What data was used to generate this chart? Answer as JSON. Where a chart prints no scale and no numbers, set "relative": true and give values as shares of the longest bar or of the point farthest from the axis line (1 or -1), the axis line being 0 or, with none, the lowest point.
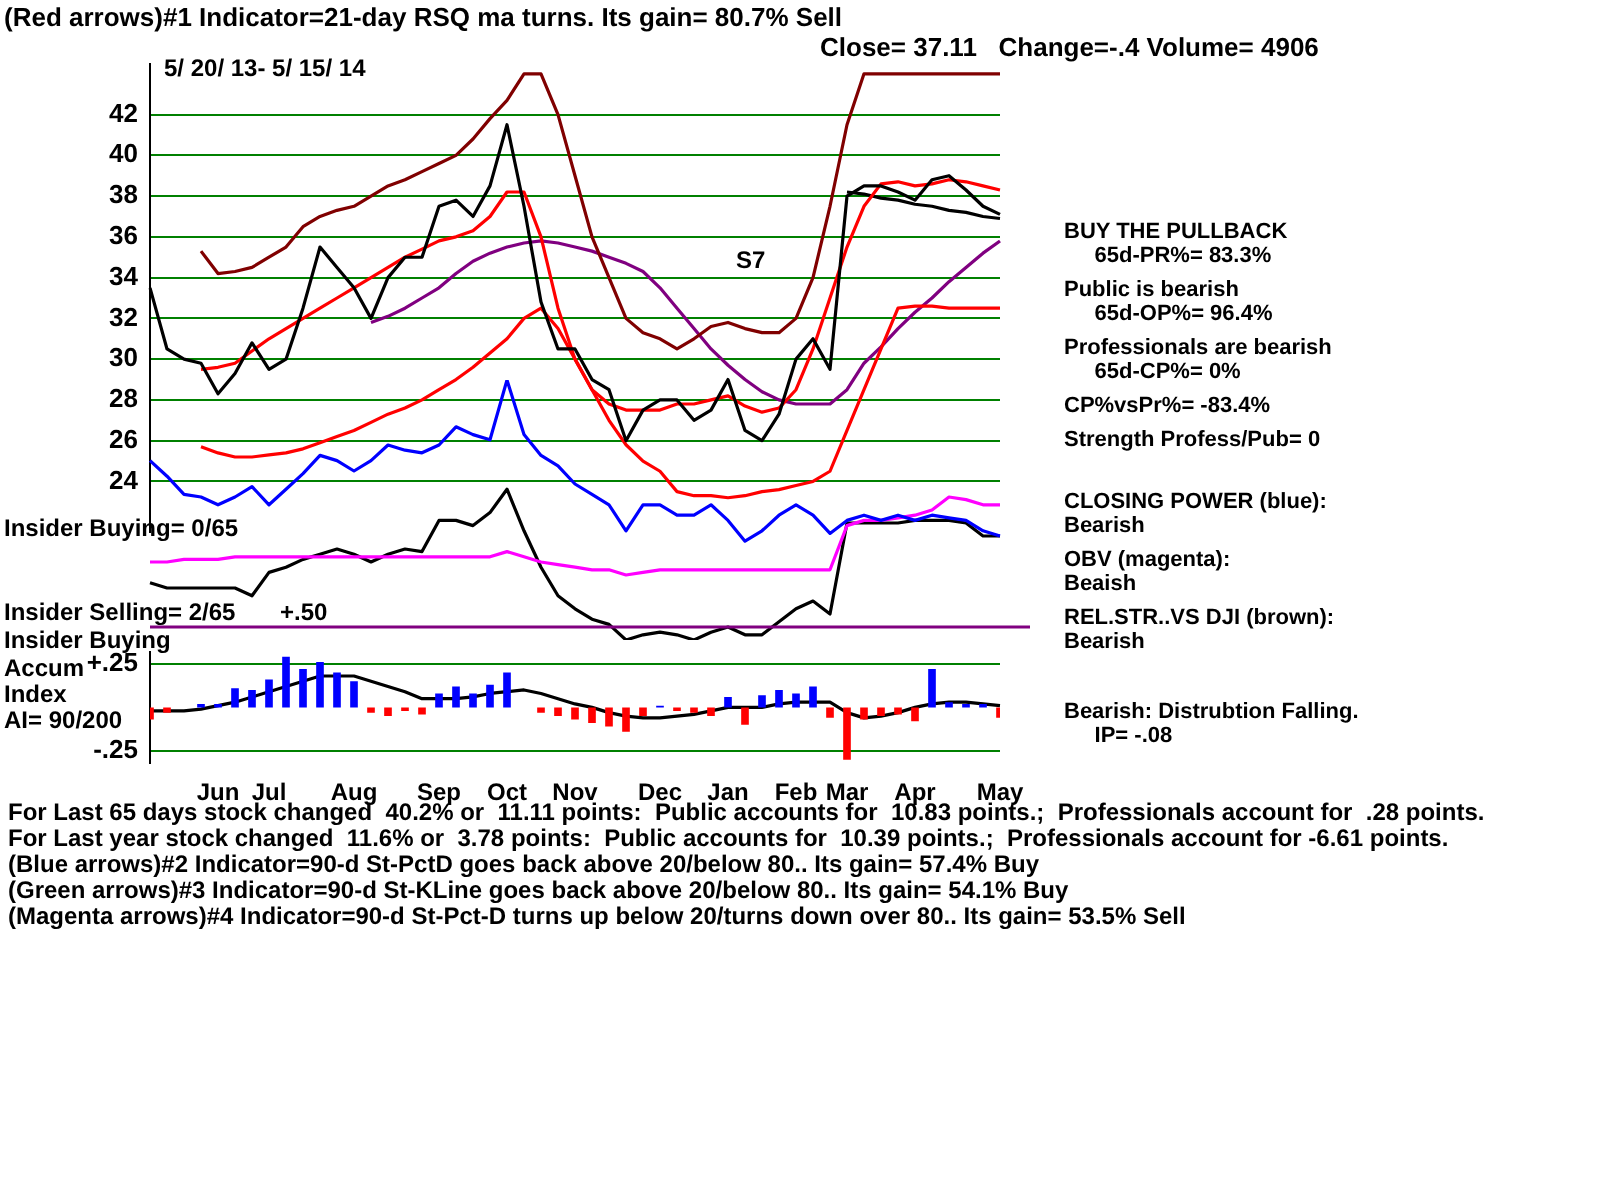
{
  "chart_data": [
    {
      "type": "line",
      "title": "(Red arrows)#1 Indicator=21-day RSQ ma turns. Its gain= 80.7% Sell",
      "subtitle": "Close= 37.11   Change=-.4 Volume= 4906",
      "categories": [
        null,
        null,
        null,
        null,
        null,
        null,
        null,
        null,
        null,
        null,
        null,
        null,
        null,
        null,
        null,
        null,
        null,
        null,
        null,
        null,
        null,
        null,
        null,
        null,
        null,
        null,
        null,
        null,
        null,
        null,
        null,
        null,
        null,
        null,
        null,
        null,
        null,
        null,
        null,
        null,
        null,
        null,
        null,
        null,
        null,
        null,
        null,
        null,
        null,
        null,
        null
      ],
      "series": [
        {
          "color": "#000000",
          "values": [
            33.5,
            30.5,
            30,
            29.8,
            28.3,
            29.3,
            30.8,
            29.5,
            30,
            32.5,
            35.5,
            34.5,
            33.5,
            32,
            34,
            35,
            35,
            37.5,
            37.8,
            37,
            38.5,
            41.5,
            37.5,
            32.8,
            30.5,
            30.5,
            29,
            28.5,
            26,
            27.5,
            28,
            28,
            27,
            27.5,
            29,
            26.5,
            26,
            27.3,
            30,
            31,
            29.5,
            38,
            38.5,
            38.5,
            38.2,
            37.8,
            38.8,
            39,
            38.3,
            37.5,
            37.1
          ]
        },
        {
          "color": "#800000",
          "values": [
            null,
            null,
            null,
            35.3,
            34.2,
            34.3,
            34.5,
            35,
            35.5,
            36.5,
            37,
            37.3,
            37.5,
            38,
            38.5,
            38.8,
            39.2,
            39.6,
            40,
            40.8,
            41.8,
            42.7,
            44,
            44,
            42,
            39,
            36,
            34,
            32,
            31.3,
            31,
            30.5,
            31,
            31.6,
            31.8,
            31.5,
            31.3,
            31.3,
            32,
            34,
            37.5,
            41.5,
            44,
            44,
            44,
            44,
            44,
            44,
            44,
            44,
            44
          ]
        },
        {
          "color": "#ff0000",
          "values": [
            null,
            null,
            null,
            29.5,
            29.6,
            29.8,
            30.4,
            31,
            31.5,
            32,
            32.5,
            33,
            33.5,
            34,
            34.5,
            35,
            35.4,
            35.8,
            36,
            36.3,
            37,
            38.2,
            38.2,
            36,
            32.5,
            30,
            28.5,
            27.8,
            27.5,
            27.5,
            27.5,
            27.8,
            27.8,
            28,
            28.2,
            27.7,
            27.4,
            27.6,
            28.5,
            30.5,
            33,
            35.5,
            37.5,
            38.6,
            38.7,
            38.5,
            38.6,
            38.8,
            38.7,
            38.5,
            38.3
          ]
        },
        {
          "color": "#ff0000",
          "values": [
            null,
            null,
            null,
            25.7,
            25.4,
            25.2,
            25.2,
            25.3,
            25.4,
            25.6,
            25.9,
            26.2,
            26.5,
            26.9,
            27.3,
            27.6,
            28,
            28.5,
            29,
            29.6,
            30.3,
            31,
            32,
            32.5,
            31.5,
            30,
            28.5,
            27,
            25.8,
            25,
            24.5,
            23.5,
            23.3,
            23.3,
            23.2,
            23.3,
            23.5,
            23.6,
            23.8,
            24,
            24.5,
            26.5,
            28.5,
            30.5,
            32.5,
            32.6,
            32.6,
            32.5,
            32.5,
            32.5,
            32.5
          ]
        },
        {
          "color": "#800080",
          "values": [
            null,
            null,
            null,
            null,
            null,
            null,
            null,
            null,
            null,
            null,
            null,
            null,
            null,
            31.8,
            32.1,
            32.5,
            33,
            33.5,
            34.2,
            34.8,
            35.2,
            35.5,
            35.7,
            35.8,
            35.7,
            35.5,
            35.3,
            35,
            34.7,
            34.3,
            33.5,
            32.5,
            31.5,
            30.5,
            29.7,
            29,
            28.4,
            28,
            27.8,
            27.8,
            27.8,
            28.5,
            29.8,
            30.6,
            31.5,
            32.3,
            33,
            33.8,
            34.5,
            35.2,
            35.8
          ]
        },
        {
          "color": "#000000",
          "values": [
            null,
            null,
            null,
            null,
            null,
            null,
            null,
            null,
            null,
            null,
            null,
            null,
            null,
            null,
            null,
            null,
            null,
            null,
            null,
            null,
            null,
            null,
            null,
            null,
            null,
            null,
            null,
            null,
            null,
            null,
            null,
            null,
            null,
            null,
            null,
            null,
            null,
            null,
            null,
            null,
            null,
            38.2,
            38.1,
            37.9,
            37.8,
            37.6,
            37.5,
            37.3,
            37.2,
            37.0,
            36.9
          ]
        }
      ],
      "ylim": [
        21.5,
        44.5
      ],
      "yticks": [
        24,
        26,
        28,
        30,
        32,
        34,
        36,
        38,
        40,
        42
      ],
      "grid": "y",
      "legend": false,
      "tick_labels": "y",
      "annotations": [
        "5/ 20/ 13- 5/ 15/ 14",
        "S7",
        "BUY THE PULLBACK\n     65d-PR%= 83.3%",
        "Public is bearish\n     65d-OP%= 96.4%",
        "Professionals are bearish\n     65d-CP%= 0%",
        "CP%vsPr%= -83.4%",
        "Strength Profess/Pub= 0"
      ]
    },
    {
      "type": "line",
      "relative": true,
      "legend": false,
      "tick_labels": false,
      "categories": [
        null,
        null,
        null,
        null,
        null,
        null,
        null,
        null,
        null,
        null,
        null,
        null,
        null,
        null,
        null,
        null,
        null,
        null,
        null,
        null,
        null,
        null,
        null,
        null,
        null,
        null,
        null,
        null,
        null,
        null,
        null,
        null,
        null,
        null,
        null,
        null,
        null,
        null,
        null,
        null,
        null,
        null,
        null,
        null,
        null,
        null,
        null,
        null,
        null,
        null,
        null
      ],
      "series": [
        {
          "color": "#0000ff",
          "values": [
            0.69,
            0.63,
            0.56,
            0.55,
            0.52,
            0.55,
            0.59,
            0.52,
            0.58,
            0.64,
            0.71,
            0.69,
            0.65,
            0.69,
            0.75,
            0.73,
            0.72,
            0.75,
            0.82,
            0.79,
            0.77,
            1,
            0.79,
            0.71,
            0.67,
            0.6,
            0.56,
            0.52,
            0.42,
            0.52,
            0.52,
            0.48,
            0.48,
            0.52,
            0.46,
            0.38,
            0.42,
            0.48,
            0.52,
            0.48,
            0.41,
            0.46,
            0.48,
            0.46,
            0.48,
            0.46,
            0.48,
            0.47,
            0.46,
            0.42,
            0.4
          ]
        },
        {
          "color": "#ff00ff",
          "values": [
            0.3,
            0.3,
            0.31,
            0.31,
            0.31,
            0.32,
            0.32,
            0.32,
            0.32,
            0.32,
            0.32,
            0.32,
            0.32,
            0.32,
            0.32,
            0.32,
            0.32,
            0.32,
            0.32,
            0.32,
            0.32,
            0.34,
            0.32,
            0.3,
            0.29,
            0.28,
            0.27,
            0.27,
            0.25,
            0.26,
            0.27,
            0.27,
            0.27,
            0.27,
            0.27,
            0.27,
            0.27,
            0.27,
            0.27,
            0.27,
            0.27,
            0.44,
            0.46,
            0.46,
            0.47,
            0.48,
            0.5,
            0.55,
            0.54,
            0.52,
            0.52
          ]
        },
        {
          "color": "#000000",
          "values": [
            0.22,
            0.2,
            0.2,
            0.2,
            0.2,
            0.2,
            0.17,
            0.26,
            0.28,
            0.31,
            0.33,
            0.35,
            0.33,
            0.3,
            0.33,
            0.35,
            0.34,
            0.46,
            0.46,
            0.44,
            0.49,
            0.58,
            0.42,
            0.28,
            0.17,
            0.12,
            0.08,
            0.06,
            0,
            0.02,
            0.03,
            0.02,
            0,
            0.03,
            0.05,
            0.02,
            0.02,
            0.07,
            0.12,
            0.15,
            0.1,
            0.45,
            0.45,
            0.45,
            0.45,
            0.46,
            0.46,
            0.46,
            0.45,
            0.4,
            0.4
          ]
        }
      ],
      "ref_lines": [
        {
          "axis": "y",
          "value": 0.05,
          "label": "Insider Buying",
          "color": "#800080"
        }
      ],
      "annotations": [
        "Insider Buying= 0/65",
        "Insider Selling= 2/65",
        "+.50",
        "CLOSING POWER (blue):\nBearish",
        "OBV (magenta):\nBeaish",
        "REL.STR..VS DJI (brown):\nBearish"
      ]
    },
    {
      "type": "bar",
      "legend": false,
      "grid": "y",
      "categories": [
        null,
        null,
        null,
        null,
        "Jun",
        null,
        null,
        "Jul",
        null,
        null,
        null,
        null,
        "Aug",
        null,
        null,
        null,
        null,
        "Sep",
        null,
        null,
        null,
        "Oct",
        null,
        null,
        null,
        "Nov",
        null,
        null,
        null,
        null,
        "Dec",
        null,
        null,
        null,
        "Jan",
        null,
        null,
        null,
        "Feb",
        null,
        null,
        "Mar",
        null,
        null,
        null,
        "Apr",
        null,
        null,
        null,
        null,
        "May"
      ],
      "series": [
        {
          "values": [
            -0.07,
            -0.03,
            0,
            0.02,
            0.02,
            0.11,
            0.1,
            0.16,
            0.29,
            0.22,
            0.26,
            0.2,
            0.15,
            -0.03,
            -0.05,
            -0.02,
            -0.04,
            0.08,
            0.12,
            0.08,
            0.13,
            0.2,
            0,
            -0.03,
            -0.05,
            -0.07,
            -0.09,
            -0.11,
            -0.14,
            -0.05,
            0.01,
            -0.02,
            -0.03,
            -0.05,
            0.06,
            -0.1,
            0.07,
            0.1,
            0.08,
            0.12,
            -0.06,
            -0.3,
            -0.07,
            -0.05,
            -0.04,
            -0.08,
            0.22,
            0.03,
            0.02,
            0.02,
            -0.06
          ],
          "colors": [
            "#ff0000",
            "#ff0000",
            "#ff0000",
            "#0000ff",
            "#0000ff",
            "#0000ff",
            "#0000ff",
            "#0000ff",
            "#0000ff",
            "#0000ff",
            "#0000ff",
            "#0000ff",
            "#0000ff",
            "#ff0000",
            "#ff0000",
            "#ff0000",
            "#ff0000",
            "#0000ff",
            "#0000ff",
            "#0000ff",
            "#0000ff",
            "#0000ff",
            "#ff0000",
            "#ff0000",
            "#ff0000",
            "#ff0000",
            "#ff0000",
            "#ff0000",
            "#ff0000",
            "#ff0000",
            "#0000ff",
            "#ff0000",
            "#ff0000",
            "#ff0000",
            "#0000ff",
            "#ff0000",
            "#0000ff",
            "#0000ff",
            "#0000ff",
            "#0000ff",
            "#ff0000",
            "#ff0000",
            "#ff0000",
            "#ff0000",
            "#ff0000",
            "#ff0000",
            "#0000ff",
            "#0000ff",
            "#0000ff",
            "#0000ff",
            "#ff0000"
          ]
        },
        {
          "type": "line",
          "color": "#000000",
          "values": [
            -0.02,
            -0.02,
            -0.02,
            -0.01,
            0.01,
            0.03,
            0.06,
            0.09,
            0.12,
            0.15,
            0.18,
            0.18,
            0.18,
            0.15,
            0.12,
            0.09,
            0.05,
            0.05,
            0.05,
            0.06,
            0.08,
            0.09,
            0.1,
            0.08,
            0.05,
            0.02,
            0,
            -0.03,
            -0.05,
            -0.06,
            -0.06,
            -0.05,
            -0.04,
            -0.02,
            0,
            0,
            0,
            0.02,
            0.03,
            0.03,
            0.03,
            -0.03,
            -0.06,
            -0.05,
            -0.03,
            0,
            0.02,
            0.03,
            0.03,
            0.02,
            0.01
          ]
        }
      ],
      "ylim": [
        -0.32,
        0.32
      ],
      "yticks": [
        {
          "value": 0.25,
          "label": "+.25"
        },
        {
          "value": -0.25,
          "label": "-.25"
        }
      ],
      "annotations": [
        "Accum",
        "Index",
        "AI= 90/200",
        "Bearish: Distrubtion Falling.\n     IP= -.08",
        "For Last 65 days stock changed  40.2% or  11.11 points:  Public accounts for  10.83 points.;  Professionals account for  .28 points.",
        "For Last year stock changed  11.6% or  3.78 points:  Public accounts for  10.39 points.;  Professionals account for -6.61 points.",
        "(Blue arrows)#2 Indicator=90-d St-PctD goes back above 20/below 80.. Its gain= 57.4% Buy",
        "(Green arrows)#3 Indicator=90-d St-KLine goes back above 20/below 80.. Its gain= 54.1% Buy",
        "(Magenta arrows)#4 Indicator=90-d St-Pct-D turns up below 20/turns down over 80.. Its gain= 53.5% Sell"
      ]
    }
  ]
}
